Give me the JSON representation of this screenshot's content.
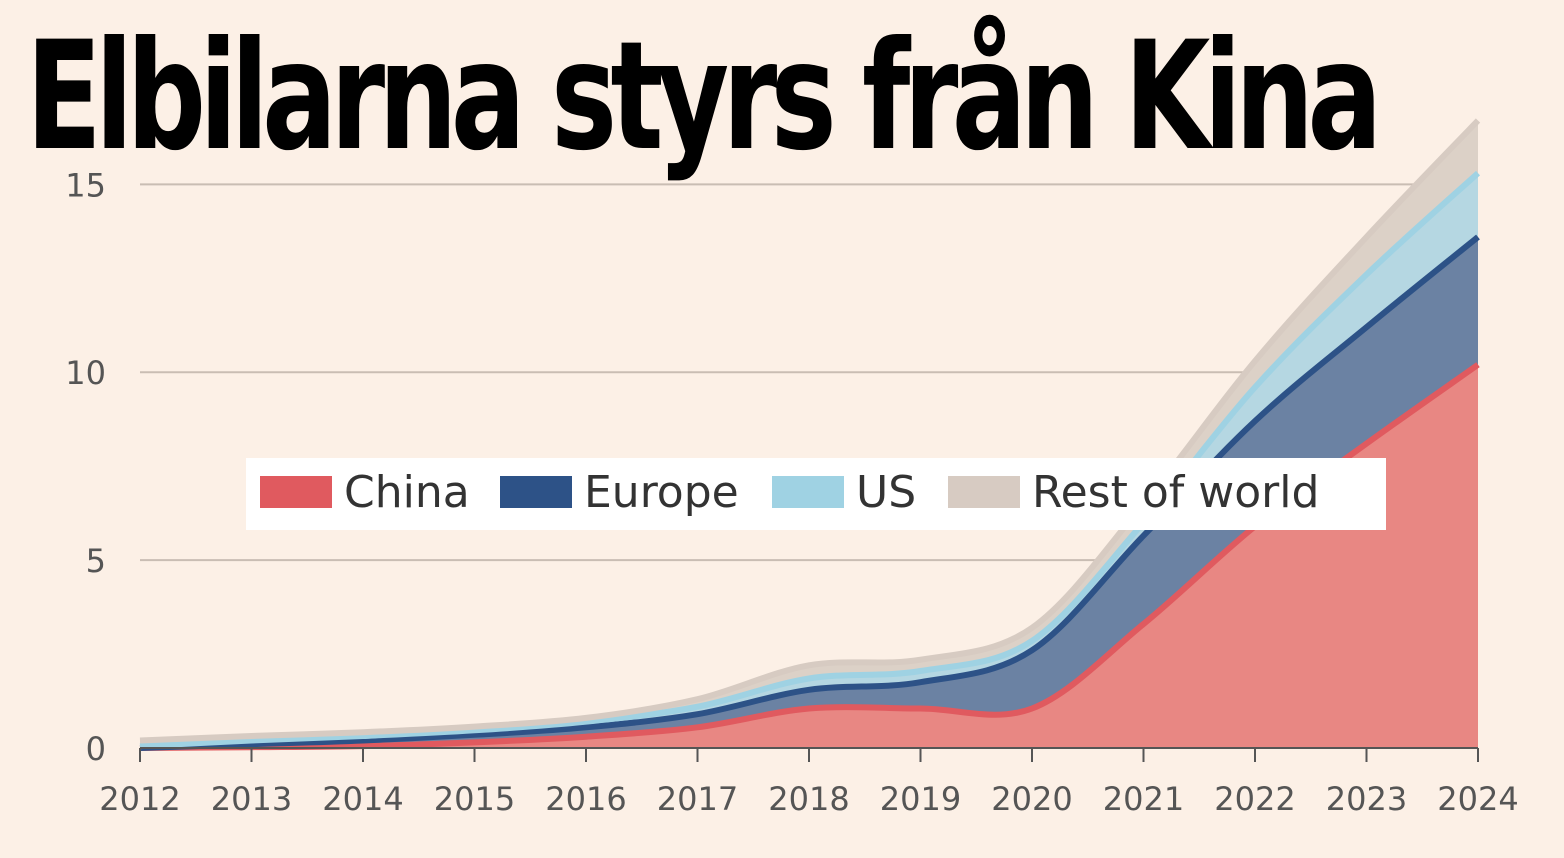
{
  "title": "Elbilarna styrs från Kina",
  "chart_data": {
    "type": "area",
    "stacked": true,
    "x": [
      2012,
      2013,
      2014,
      2015,
      2016,
      2017,
      2018,
      2019,
      2020,
      2021,
      2022,
      2023,
      2024
    ],
    "xlim": [
      2012,
      2024
    ],
    "ylim": [
      0,
      16.5
    ],
    "yticks": [
      0,
      5,
      10,
      15
    ],
    "xticks": [
      2012,
      2013,
      2014,
      2015,
      2016,
      2017,
      2018,
      2019,
      2020,
      2021,
      2022,
      2023,
      2024
    ],
    "grid": "horizontal",
    "legend_position": "middle",
    "series": [
      {
        "name": "China",
        "color": "#e05a5f",
        "fill": "#e88783",
        "values": [
          0.0,
          0.02,
          0.05,
          0.15,
          0.3,
          0.55,
          1.05,
          1.05,
          1.05,
          3.3,
          5.9,
          8.1,
          10.2
        ]
      },
      {
        "name": "Europe",
        "color": "#2d5287",
        "fill": "#6b82a3",
        "values": [
          0.0,
          0.08,
          0.15,
          0.2,
          0.25,
          0.35,
          0.5,
          0.7,
          1.55,
          2.35,
          2.8,
          3.1,
          3.4
        ]
      },
      {
        "name": "US",
        "color": "#9fd2e3",
        "fill": "#b5d7e2",
        "values": [
          0.05,
          0.1,
          0.12,
          0.12,
          0.15,
          0.2,
          0.3,
          0.3,
          0.25,
          0.35,
          0.9,
          1.4,
          1.7
        ]
      },
      {
        "name": "Rest of world",
        "color": "#d7cbc2",
        "fill": "#dcd1c7",
        "values": [
          0.15,
          0.12,
          0.1,
          0.1,
          0.1,
          0.2,
          0.35,
          0.3,
          0.35,
          0.5,
          0.7,
          1.0,
          1.4
        ]
      }
    ]
  }
}
